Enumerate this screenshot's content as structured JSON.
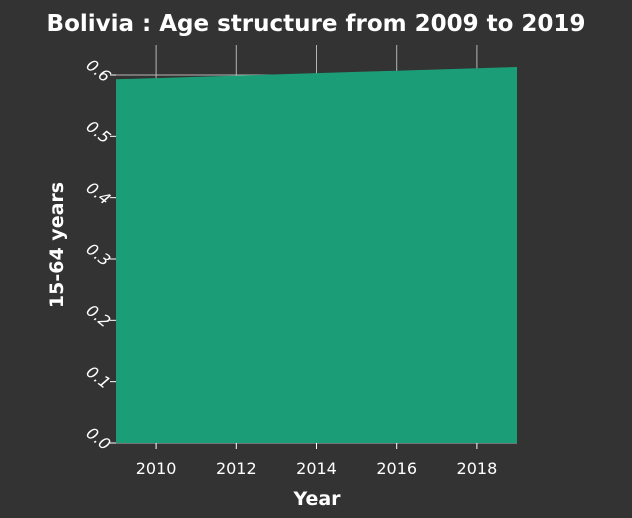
{
  "chart_data": {
    "type": "area",
    "title": "Bolivia : Age structure from 2009 to 2019",
    "xlabel": "Year",
    "ylabel": "15-64 years",
    "x": [
      2009,
      2010,
      2011,
      2012,
      2013,
      2014,
      2015,
      2016,
      2017,
      2018,
      2019
    ],
    "series": [
      {
        "values": [
          0.593,
          0.595,
          0.597,
          0.599,
          0.601,
          0.603,
          0.605,
          0.607,
          0.609,
          0.611,
          0.613
        ],
        "color": "#1b9e77"
      }
    ],
    "xlim": [
      2009,
      2019
    ],
    "ylim": [
      0,
      0.6
    ],
    "x_ticks": [
      2010,
      2012,
      2014,
      2016,
      2018
    ],
    "x_tick_labels": [
      "2010",
      "2012",
      "2014",
      "2016",
      "2018"
    ],
    "y_ticks": [
      0.0,
      0.1,
      0.2,
      0.3,
      0.4,
      0.5,
      0.6
    ],
    "y_tick_labels": [
      "0.0",
      "0.1",
      "0.2",
      "0.3",
      "0.4",
      "0.5",
      "0.6"
    ],
    "grid": true,
    "legend": "none",
    "colors": {
      "background": "#333333",
      "fill": "#1b9e77",
      "text": "#ffffff"
    }
  }
}
